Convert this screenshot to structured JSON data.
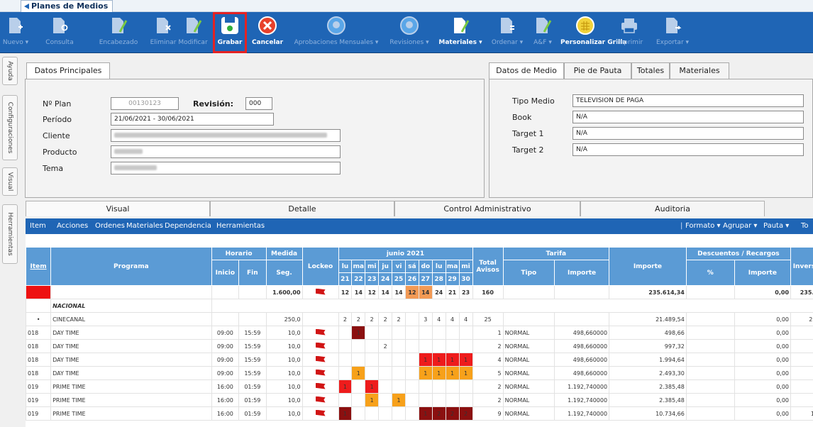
{
  "window": {
    "tab_title": "Planes de Medios"
  },
  "toolbar": {
    "buttons": [
      {
        "label": "Nuevo ▾",
        "icon": "doc-add-icon",
        "enabled": false
      },
      {
        "label": "Consulta",
        "icon": "doc-search-icon",
        "enabled": false
      },
      {
        "label": "Encabezado",
        "icon": "doc-edit-icon",
        "enabled": false
      },
      {
        "label": "Eliminar",
        "icon": "doc-delete-icon",
        "enabled": false
      },
      {
        "label": "Modificar",
        "icon": "doc-edit-icon",
        "enabled": false
      },
      {
        "label": "Grabar",
        "icon": "save-icon",
        "enabled": true,
        "highlighted": true
      },
      {
        "label": "Cancelar",
        "icon": "cancel-icon",
        "enabled": true
      },
      {
        "label": "Aprobaciones Mensuales ▾",
        "icon": "approve-icon",
        "enabled": false
      },
      {
        "label": "Revisiones ▾",
        "icon": "approve-icon",
        "enabled": false
      },
      {
        "label": "Materiales ▾",
        "icon": "doc-edit-icon",
        "enabled": true
      },
      {
        "label": "Ordenar ▾",
        "icon": "doc-sort-icon",
        "enabled": false
      },
      {
        "label": "A&F ▾",
        "icon": "doc-edit-icon",
        "enabled": false
      },
      {
        "label": "Personalizar Grilla",
        "icon": "grid-icon",
        "enabled": true
      },
      {
        "label": "Imprimir",
        "icon": "printer-icon",
        "enabled": false
      },
      {
        "label": "Exportar ▾",
        "icon": "doc-export-icon",
        "enabled": false
      }
    ]
  },
  "side_tabs": [
    "Ayuda",
    "Configuraciones",
    "Visual",
    "Herramientas"
  ],
  "datos_principales": {
    "tab": "Datos Principales",
    "fields": {
      "plan_label": "Nº Plan",
      "plan_value": "00130123",
      "revision_label": "Revisión:",
      "revision_value": "000",
      "periodo_label": "Período",
      "periodo_value": "21/06/2021 - 30/06/2021",
      "cliente_label": "Cliente",
      "producto_label": "Producto",
      "tema_label": "Tema"
    }
  },
  "datos_medio": {
    "tabs": [
      "Datos de Medio",
      "Pie de Pauta",
      "Totales",
      "Materiales"
    ],
    "fields": [
      {
        "label": "Tipo Medio",
        "value": "TELEVISION DE PAGA"
      },
      {
        "label": "Book",
        "value": "N/A"
      },
      {
        "label": "Target 1",
        "value": "N/A"
      },
      {
        "label": "Target 2",
        "value": "N/A"
      }
    ]
  },
  "bottom_tabs": [
    "Visual",
    "Detalle",
    "Control Administrativo",
    "Auditoria"
  ],
  "menubar": {
    "left": [
      "Item",
      "Acciones",
      "Ordenes",
      "Materiales",
      "Dependencia",
      "Herramientas"
    ],
    "right": [
      "Formato ▾",
      "Agrupar ▾",
      "Pauta ▾",
      "To"
    ]
  },
  "grid": {
    "headers": {
      "item": "Item",
      "programa": "Programa",
      "horario": "Horario",
      "inicio": "Inicio",
      "fin": "Fin",
      "medida": "Medida",
      "seg": "Seg.",
      "lockeo": "Lockeo",
      "month": "junio 2021",
      "total": "Total Avisos",
      "tarifa": "Tarifa",
      "tipo": "Tipo",
      "importe": "Importe",
      "importe_main": "Importe",
      "desc": "Descuentos / Recargos",
      "pct": "%",
      "desc_importe": "Importe",
      "inv": "Inversi"
    },
    "days": [
      {
        "d": "lu",
        "n": "21"
      },
      {
        "d": "ma",
        "n": "22"
      },
      {
        "d": "mi",
        "n": "23"
      },
      {
        "d": "ju",
        "n": "24"
      },
      {
        "d": "vi",
        "n": "25"
      },
      {
        "d": "sá",
        "n": "26"
      },
      {
        "d": "do",
        "n": "27"
      },
      {
        "d": "lu",
        "n": "28"
      },
      {
        "d": "ma",
        "n": "29"
      },
      {
        "d": "mi",
        "n": "30"
      }
    ],
    "summary": {
      "seg": "1.600,00",
      "days": [
        "12",
        "14",
        "12",
        "14",
        "14",
        "12",
        "14",
        "24",
        "21",
        "23"
      ],
      "total": "160",
      "importe": "235.614,34",
      "desc": "0,00",
      "inv": "235.6"
    },
    "group": "NACIONAL",
    "subgroup": {
      "mark": "•",
      "name": "CINECANAL",
      "seg": "250,0",
      "days": [
        "2",
        "2",
        "2",
        "2",
        "2",
        "",
        "3",
        "4",
        "4",
        "4"
      ],
      "total": "25",
      "importe": "21.489,54",
      "desc": "0,00",
      "inv": "21."
    },
    "rows": [
      {
        "item": "018",
        "prog": "DAY TIME",
        "ini": "09:00",
        "fin": "15:59",
        "seg": "10,0",
        "cells": [
          [
            "",
            ""
          ],
          [
            "1",
            "dr"
          ],
          [
            "",
            ""
          ],
          [
            "",
            ""
          ],
          [
            "",
            ""
          ],
          [
            "",
            ""
          ],
          [
            "",
            ""
          ],
          [
            "",
            ""
          ],
          [
            "",
            ""
          ],
          [
            "",
            ""
          ]
        ],
        "total": "1",
        "tipo": "NORMAL",
        "tarifa": "498,660000",
        "importe": "498,66",
        "desc": "0,00",
        "inv": ""
      },
      {
        "item": "018",
        "prog": "DAY TIME",
        "ini": "09:00",
        "fin": "15:59",
        "seg": "10,0",
        "cells": [
          [
            "",
            ""
          ],
          [
            "",
            ""
          ],
          [
            "",
            ""
          ],
          [
            "2",
            ""
          ],
          [
            "",
            ""
          ],
          [
            "",
            ""
          ],
          [
            "",
            ""
          ],
          [
            "",
            ""
          ],
          [
            "",
            ""
          ],
          [
            "",
            ""
          ]
        ],
        "total": "2",
        "tipo": "NORMAL",
        "tarifa": "498,660000",
        "importe": "997,32",
        "desc": "0,00",
        "inv": ""
      },
      {
        "item": "018",
        "prog": "DAY TIME",
        "ini": "09:00",
        "fin": "15:59",
        "seg": "10,0",
        "cells": [
          [
            "",
            ""
          ],
          [
            "",
            ""
          ],
          [
            "",
            ""
          ],
          [
            "",
            ""
          ],
          [
            "",
            ""
          ],
          [
            "",
            ""
          ],
          [
            "1",
            "rd"
          ],
          [
            "1",
            "rd"
          ],
          [
            "1",
            "rd"
          ],
          [
            "1",
            "rd"
          ]
        ],
        "total": "4",
        "tipo": "NORMAL",
        "tarifa": "498,660000",
        "importe": "1.994,64",
        "desc": "0,00",
        "inv": "1"
      },
      {
        "item": "018",
        "prog": "DAY TIME",
        "ini": "09:00",
        "fin": "15:59",
        "seg": "10,0",
        "cells": [
          [
            "",
            ""
          ],
          [
            "1",
            "or"
          ],
          [
            "",
            ""
          ],
          [
            "",
            ""
          ],
          [
            "",
            ""
          ],
          [
            "",
            ""
          ],
          [
            "1",
            "or"
          ],
          [
            "1",
            "or"
          ],
          [
            "1",
            "or"
          ],
          [
            "1",
            "or"
          ]
        ],
        "total": "5",
        "tipo": "NORMAL",
        "tarifa": "498,660000",
        "importe": "2.493,30",
        "desc": "0,00",
        "inv": "2"
      },
      {
        "item": "019",
        "prog": "PRIME TIME",
        "ini": "16:00",
        "fin": "01:59",
        "seg": "10,0",
        "cells": [
          [
            "1",
            "rd"
          ],
          [
            "",
            ""
          ],
          [
            "1",
            "rd"
          ],
          [
            "",
            ""
          ],
          [
            "",
            ""
          ],
          [
            "",
            ""
          ],
          [
            "",
            ""
          ],
          [
            "",
            ""
          ],
          [
            "",
            ""
          ],
          [
            "",
            ""
          ]
        ],
        "total": "2",
        "tipo": "NORMAL",
        "tarifa": "1.192,740000",
        "importe": "2.385,48",
        "desc": "0,00",
        "inv": "2"
      },
      {
        "item": "019",
        "prog": "PRIME TIME",
        "ini": "16:00",
        "fin": "01:59",
        "seg": "10,0",
        "cells": [
          [
            "",
            ""
          ],
          [
            "",
            ""
          ],
          [
            "1",
            "or"
          ],
          [
            "",
            ""
          ],
          [
            "1",
            "or"
          ],
          [
            "",
            ""
          ],
          [
            "",
            ""
          ],
          [
            "",
            ""
          ],
          [
            "",
            ""
          ],
          [
            "",
            ""
          ]
        ],
        "total": "2",
        "tipo": "NORMAL",
        "tarifa": "1.192,740000",
        "importe": "2.385,48",
        "desc": "0,00",
        "inv": "2"
      },
      {
        "item": "019",
        "prog": "PRIME TIME",
        "ini": "16:00",
        "fin": "01:59",
        "seg": "10,0",
        "cells": [
          [
            "1",
            "dr"
          ],
          [
            "",
            ""
          ],
          [
            "",
            ""
          ],
          [
            "",
            ""
          ],
          [
            "",
            ""
          ],
          [
            "",
            ""
          ],
          [
            "1",
            "dr"
          ],
          [
            "2",
            "dr"
          ],
          [
            "2",
            "dr"
          ],
          [
            "2",
            "dr"
          ]
        ],
        "total": "9",
        "tipo": "NORMAL",
        "tarifa": "1.192,740000",
        "importe": "10.734,66",
        "desc": "0,00",
        "inv": "10"
      }
    ]
  }
}
